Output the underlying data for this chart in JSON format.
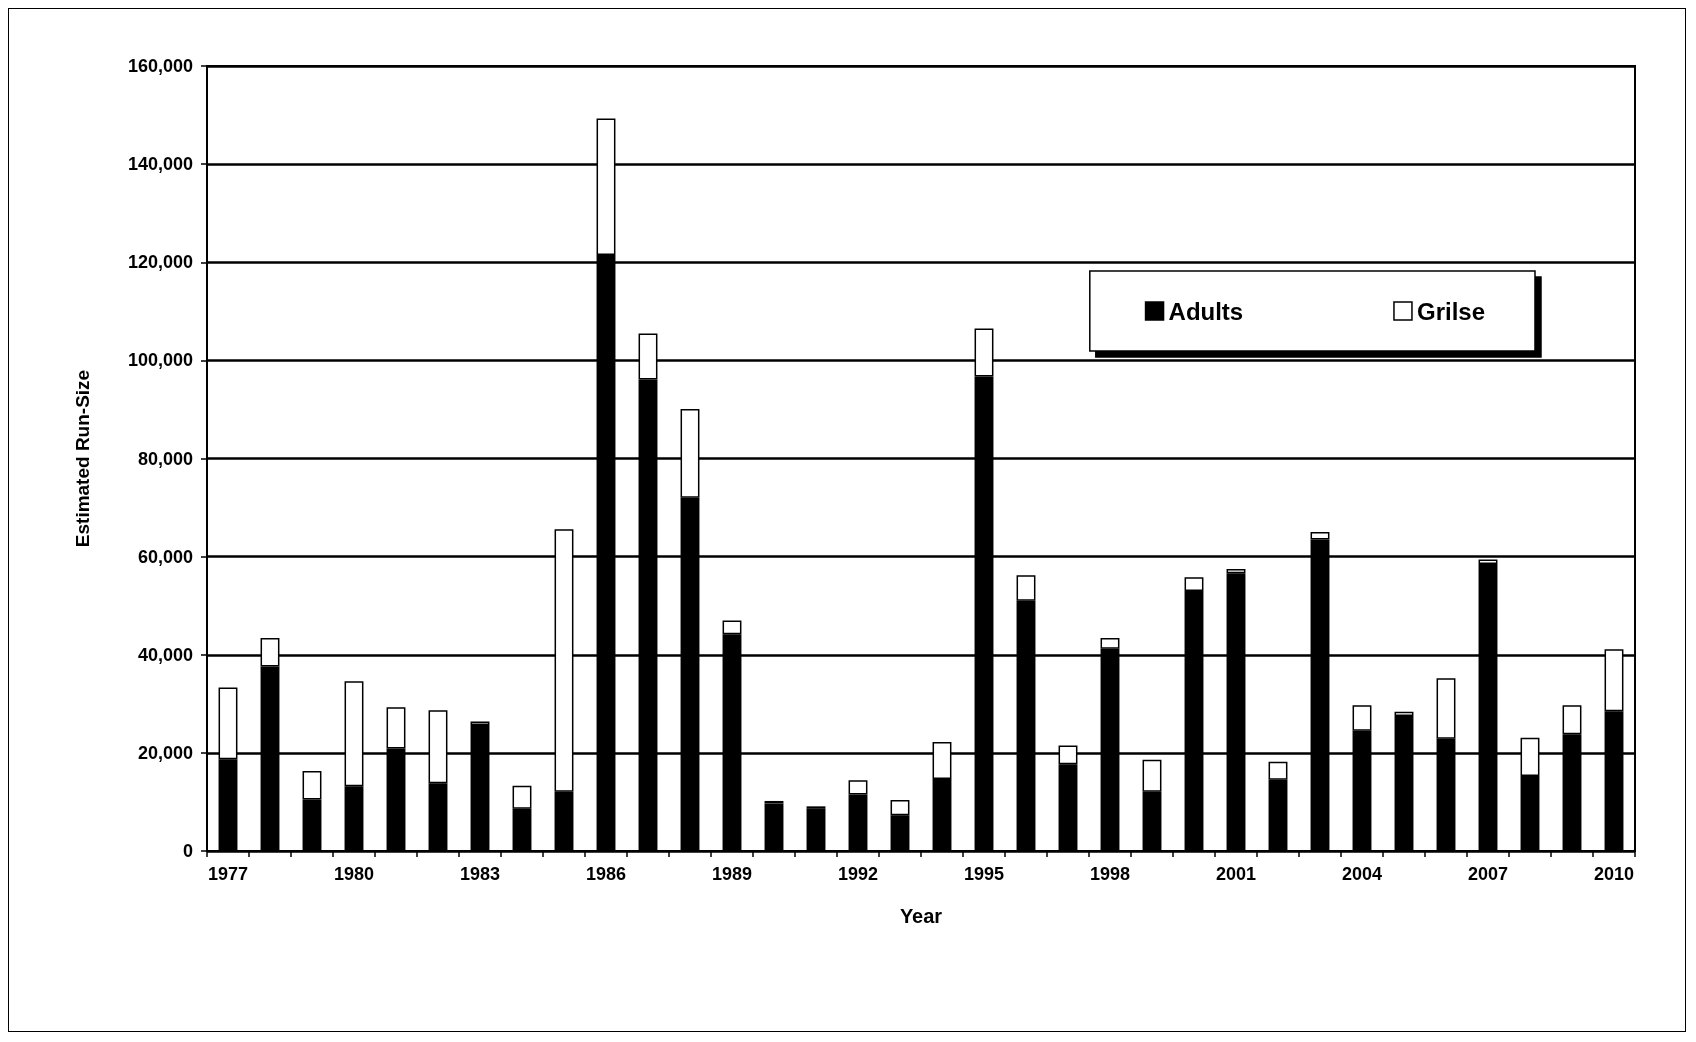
{
  "chart_data": {
    "type": "bar",
    "stacked": true,
    "xlabel": "Year",
    "ylabel": "Estimated Run-Size",
    "categories": [
      "1977",
      null,
      null,
      "1980",
      null,
      null,
      "1983",
      null,
      null,
      "1986",
      null,
      null,
      "1989",
      null,
      null,
      "1992",
      null,
      null,
      "1995",
      null,
      null,
      "1998",
      null,
      null,
      "2001",
      null,
      null,
      "2004",
      null,
      null,
      "2007",
      null,
      null,
      "2010"
    ],
    "series": [
      {
        "name": "Adults",
        "color": "#000000",
        "values": [
          18700,
          37600,
          10500,
          13200,
          20900,
          13800,
          25700,
          8600,
          12100,
          121500,
          96100,
          72000,
          44200,
          9700,
          8700,
          11500,
          7300,
          14700,
          96700,
          51000,
          17700,
          41200,
          12100,
          53000,
          56600,
          14500,
          63500,
          24500,
          27500,
          22900,
          58500,
          15300,
          23800,
          28500
        ]
      },
      {
        "name": "Grilse",
        "color": "#ffffff",
        "values": [
          14600,
          5800,
          5800,
          21400,
          8400,
          14900,
          700,
          4700,
          53500,
          27800,
          9400,
          18100,
          2800,
          500,
          400,
          2900,
          3100,
          7500,
          9800,
          5200,
          3800,
          2200,
          6500,
          2800,
          900,
          3700,
          1500,
          5200,
          900,
          12300,
          900,
          7800,
          5900,
          12600
        ]
      }
    ],
    "ylim": [
      0,
      160000
    ],
    "yticks": [
      {
        "value": 0,
        "label": "0"
      },
      {
        "value": 20000,
        "label": "20,000"
      },
      {
        "value": 40000,
        "label": "40,000"
      },
      {
        "value": 60000,
        "label": "60,000"
      },
      {
        "value": 80000,
        "label": "80,000"
      },
      {
        "value": 100000,
        "label": "100,000"
      },
      {
        "value": 120000,
        "label": "120,000"
      },
      {
        "value": 140000,
        "label": "140,000"
      },
      {
        "value": 160000,
        "label": "160,000"
      }
    ],
    "grid": "y",
    "legend": "top right"
  }
}
